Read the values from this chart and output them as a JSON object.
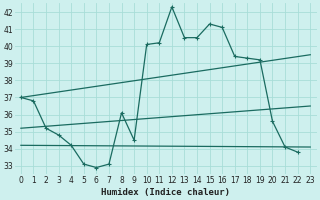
{
  "xlabel": "Humidex (Indice chaleur)",
  "xlim": [
    -0.5,
    23.5
  ],
  "ylim": [
    32.5,
    42.5
  ],
  "yticks": [
    33,
    34,
    35,
    36,
    37,
    38,
    39,
    40,
    41,
    42
  ],
  "xticks": [
    0,
    1,
    2,
    3,
    4,
    5,
    6,
    7,
    8,
    9,
    10,
    11,
    12,
    13,
    14,
    15,
    16,
    17,
    18,
    19,
    20,
    21,
    22,
    23
  ],
  "background_color": "#cef0ee",
  "grid_color": "#a8ddd8",
  "line_color": "#1a6b60",
  "curve_x": [
    0,
    1,
    2,
    3,
    4,
    5,
    6,
    7,
    8,
    9,
    10,
    11,
    12,
    13,
    14,
    15,
    16,
    17,
    18,
    19,
    20,
    21,
    22
  ],
  "curve_y": [
    37.0,
    36.8,
    35.2,
    34.8,
    34.2,
    33.1,
    32.9,
    33.1,
    36.1,
    34.5,
    40.1,
    40.2,
    42.3,
    40.5,
    40.5,
    41.3,
    41.1,
    39.4,
    39.3,
    39.2,
    35.6,
    34.1,
    33.8
  ],
  "line1_x": [
    0,
    23
  ],
  "line1_y": [
    37.0,
    39.5
  ],
  "line2_x": [
    0,
    23
  ],
  "line2_y": [
    35.2,
    36.5
  ],
  "line3_x": [
    0,
    23
  ],
  "line3_y": [
    34.2,
    34.1
  ]
}
